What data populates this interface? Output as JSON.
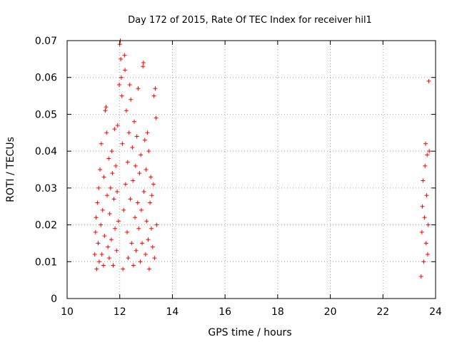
{
  "chart_data": {
    "type": "scatter",
    "title": "Day 172 of 2015, Rate Of TEC Index for receiver hil1",
    "xlabel": "GPS time / hours",
    "ylabel": "ROTI / TECUs",
    "xlim": [
      10,
      24
    ],
    "ylim": [
      0,
      0.07
    ],
    "xticks": [
      10,
      12,
      14,
      16,
      18,
      20,
      22,
      24
    ],
    "xtick_labels": [
      "10",
      "12",
      "14",
      "16",
      "18",
      "20",
      "22",
      "24"
    ],
    "yticks": [
      0,
      0.01,
      0.02,
      0.03,
      0.04,
      0.05,
      0.06,
      0.07
    ],
    "ytick_labels": [
      "0",
      "0.01",
      "0.02",
      "0.03",
      "0.04",
      "0.05",
      "0.06",
      "0.07"
    ],
    "grid": true,
    "marker": "+",
    "color": "#ff0000",
    "series": [
      {
        "name": "hil1",
        "points": [
          [
            11.05,
            0.012
          ],
          [
            11.08,
            0.018
          ],
          [
            11.1,
            0.022
          ],
          [
            11.12,
            0.008
          ],
          [
            11.15,
            0.026
          ],
          [
            11.18,
            0.015
          ],
          [
            11.2,
            0.03
          ],
          [
            11.22,
            0.01
          ],
          [
            11.25,
            0.035
          ],
          [
            11.28,
            0.02
          ],
          [
            11.3,
            0.042
          ],
          [
            11.32,
            0.012
          ],
          [
            11.35,
            0.024
          ],
          [
            11.38,
            0.009
          ],
          [
            11.4,
            0.033
          ],
          [
            11.42,
            0.017
          ],
          [
            11.45,
            0.051
          ],
          [
            11.48,
            0.052
          ],
          [
            11.5,
            0.045
          ],
          [
            11.52,
            0.028
          ],
          [
            11.55,
            0.014
          ],
          [
            11.58,
            0.038
          ],
          [
            11.6,
            0.011
          ],
          [
            11.62,
            0.023
          ],
          [
            11.65,
            0.03
          ],
          [
            11.68,
            0.016
          ],
          [
            11.7,
            0.04
          ],
          [
            11.72,
            0.034
          ],
          [
            11.75,
            0.009
          ],
          [
            11.78,
            0.027
          ],
          [
            11.8,
            0.046
          ],
          [
            11.82,
            0.019
          ],
          [
            11.85,
            0.036
          ],
          [
            11.88,
            0.013
          ],
          [
            11.9,
            0.029
          ],
          [
            11.92,
            0.047
          ],
          [
            11.95,
            0.021
          ],
          [
            11.98,
            0.058
          ],
          [
            12.0,
            0.069
          ],
          [
            12.02,
            0.07
          ],
          [
            12.04,
            0.065
          ],
          [
            12.06,
            0.06
          ],
          [
            12.08,
            0.055
          ],
          [
            12.1,
            0.042
          ],
          [
            12.12,
            0.008
          ],
          [
            12.15,
            0.024
          ],
          [
            12.18,
            0.066
          ],
          [
            12.2,
            0.062
          ],
          [
            12.22,
            0.031
          ],
          [
            12.25,
            0.051
          ],
          [
            12.28,
            0.018
          ],
          [
            12.3,
            0.037
          ],
          [
            12.32,
            0.011
          ],
          [
            12.35,
            0.045
          ],
          [
            12.38,
            0.058
          ],
          [
            12.4,
            0.027
          ],
          [
            12.42,
            0.054
          ],
          [
            12.45,
            0.015
          ],
          [
            12.48,
            0.041
          ],
          [
            12.5,
            0.032
          ],
          [
            12.52,
            0.009
          ],
          [
            12.55,
            0.048
          ],
          [
            12.58,
            0.022
          ],
          [
            12.6,
            0.036
          ],
          [
            12.62,
            0.013
          ],
          [
            12.65,
            0.044
          ],
          [
            12.68,
            0.026
          ],
          [
            12.7,
            0.057
          ],
          [
            12.72,
            0.019
          ],
          [
            12.75,
            0.034
          ],
          [
            12.78,
            0.01
          ],
          [
            12.8,
            0.039
          ],
          [
            12.82,
            0.024
          ],
          [
            12.85,
            0.015
          ],
          [
            12.88,
            0.063
          ],
          [
            12.9,
            0.064
          ],
          [
            12.92,
            0.029
          ],
          [
            12.95,
            0.043
          ],
          [
            12.98,
            0.012
          ],
          [
            13.0,
            0.035
          ],
          [
            13.02,
            0.021
          ],
          [
            13.05,
            0.045
          ],
          [
            13.08,
            0.016
          ],
          [
            13.1,
            0.04
          ],
          [
            13.12,
            0.008
          ],
          [
            13.15,
            0.026
          ],
          [
            13.18,
            0.033
          ],
          [
            13.2,
            0.019
          ],
          [
            13.22,
            0.028
          ],
          [
            13.25,
            0.014
          ],
          [
            13.28,
            0.031
          ],
          [
            13.3,
            0.055
          ],
          [
            13.32,
            0.011
          ],
          [
            13.35,
            0.057
          ],
          [
            13.38,
            0.049
          ],
          [
            13.4,
            0.02
          ],
          [
            23.45,
            0.006
          ],
          [
            23.48,
            0.018
          ],
          [
            23.5,
            0.025
          ],
          [
            23.52,
            0.032
          ],
          [
            23.55,
            0.01
          ],
          [
            23.58,
            0.022
          ],
          [
            23.6,
            0.036
          ],
          [
            23.62,
            0.042
          ],
          [
            23.64,
            0.015
          ],
          [
            23.66,
            0.028
          ],
          [
            23.68,
            0.039
          ],
          [
            23.7,
            0.012
          ],
          [
            23.72,
            0.02
          ],
          [
            23.74,
            0.059
          ],
          [
            23.76,
            0.04
          ]
        ]
      }
    ]
  }
}
